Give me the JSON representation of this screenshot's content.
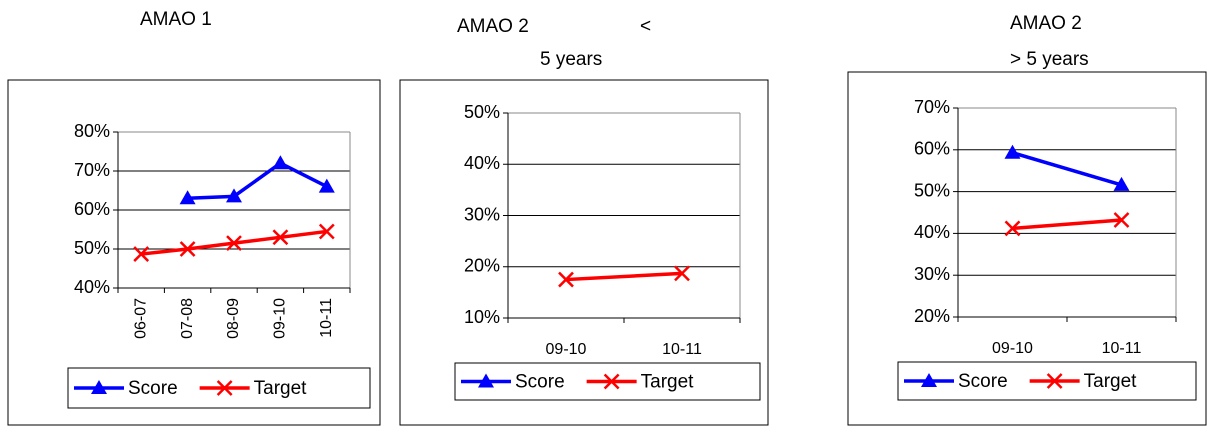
{
  "chart_data": [
    {
      "type": "line",
      "title": "AMAO 1",
      "categories": [
        "06-07",
        "07-08",
        "08-09",
        "09-10",
        "10-11"
      ],
      "series": [
        {
          "name": "Score",
          "color": "#0000ff",
          "values": [
            null,
            63,
            63.5,
            72,
            66
          ]
        },
        {
          "name": "Target",
          "color": "#ff0000",
          "values": [
            48.7,
            50,
            51.5,
            53,
            54.5
          ]
        }
      ],
      "ylim": [
        40,
        80
      ],
      "yticks": [
        {
          "value": 40,
          "label": "40%"
        },
        {
          "value": 50,
          "label": "50%"
        },
        {
          "value": 60,
          "label": "60%"
        },
        {
          "value": 70,
          "label": "70%"
        },
        {
          "value": 80,
          "label": "80%"
        }
      ],
      "grid": true,
      "legend": "bottom"
    },
    {
      "type": "line",
      "title": "AMAO 2",
      "title_suffix": "<",
      "subtitle": "5 years",
      "categories": [
        "09-10",
        "10-11"
      ],
      "series": [
        {
          "name": "Score",
          "color": "#0000ff",
          "values": [
            null,
            null
          ]
        },
        {
          "name": "Target",
          "color": "#ff0000",
          "values": [
            17.5,
            18.7
          ]
        }
      ],
      "ylim": [
        10,
        50
      ],
      "yticks": [
        {
          "value": 10,
          "label": "10%"
        },
        {
          "value": 20,
          "label": "20%"
        },
        {
          "value": 30,
          "label": "30%"
        },
        {
          "value": 40,
          "label": "40%"
        },
        {
          "value": 50,
          "label": "50%"
        }
      ],
      "grid": true,
      "legend": "bottom"
    },
    {
      "type": "line",
      "title": "AMAO 2",
      "subtitle": "> 5 years",
      "categories": [
        "09-10",
        "10-11"
      ],
      "series": [
        {
          "name": "Score",
          "color": "#0000ff",
          "values": [
            59.3,
            51.6
          ]
        },
        {
          "name": "Target",
          "color": "#ff0000",
          "values": [
            41.2,
            43.2
          ]
        }
      ],
      "ylim": [
        20,
        70
      ],
      "yticks": [
        {
          "value": 20,
          "label": "20%"
        },
        {
          "value": 30,
          "label": "30%"
        },
        {
          "value": 40,
          "label": "40%"
        },
        {
          "value": 50,
          "label": "50%"
        },
        {
          "value": 60,
          "label": "60%"
        },
        {
          "value": 70,
          "label": "70%"
        }
      ],
      "grid": true,
      "legend": "bottom"
    }
  ]
}
